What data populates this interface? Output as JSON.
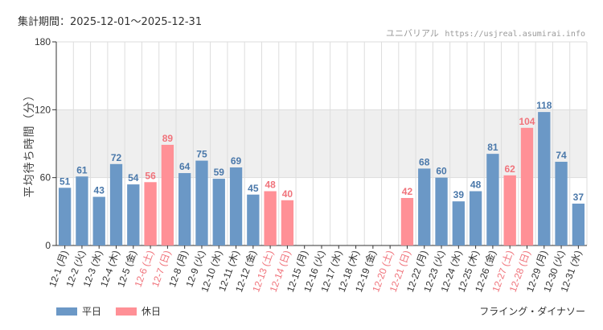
{
  "header": {
    "period_label": "集計期間：2025-12-01〜2025-12-31",
    "site_name": "ユニバリアル",
    "site_url": "https://usjreal.asumirai.info"
  },
  "footer": {
    "attraction": "フライング・ダイナソー"
  },
  "colors": {
    "weekday": "#6b98c6",
    "holiday": "#ff9096",
    "weekday_label": "#4a78aa",
    "holiday_label": "#f0737b",
    "band": "#efefef",
    "grid": "#dddddd",
    "axis": "#333333"
  },
  "chart_data": {
    "type": "bar",
    "title": "",
    "xlabel": "",
    "ylabel": "平均待ち時間（分）",
    "ylim": [
      0,
      180
    ],
    "yticks": [
      0,
      60,
      120,
      180
    ],
    "shaded_band": [
      60,
      120
    ],
    "grid": true,
    "legend": {
      "position": "bottom-left",
      "entries": [
        {
          "name": "平日",
          "key": "weekday"
        },
        {
          "name": "休日",
          "key": "holiday"
        }
      ]
    },
    "categories": [
      "12-1 (月)",
      "12-2 (火)",
      "12-3 (水)",
      "12-4 (木)",
      "12-5 (金)",
      "12-6 (土)",
      "12-7 (日)",
      "12-8 (月)",
      "12-9 (火)",
      "12-10 (水)",
      "12-11 (木)",
      "12-12 (金)",
      "12-13 (土)",
      "12-14 (日)",
      "12-15 (月)",
      "12-16 (火)",
      "12-17 (水)",
      "12-18 (木)",
      "12-19 (金)",
      "12-20 (土)",
      "12-21 (日)",
      "12-22 (月)",
      "12-23 (火)",
      "12-24 (水)",
      "12-25 (木)",
      "12-26 (金)",
      "12-27 (土)",
      "12-28 (日)",
      "12-29 (月)",
      "12-30 (火)",
      "12-31 (水)"
    ],
    "day_type": [
      "weekday",
      "weekday",
      "weekday",
      "weekday",
      "weekday",
      "holiday",
      "holiday",
      "weekday",
      "weekday",
      "weekday",
      "weekday",
      "weekday",
      "holiday",
      "holiday",
      "weekday",
      "weekday",
      "weekday",
      "weekday",
      "weekday",
      "holiday",
      "holiday",
      "weekday",
      "weekday",
      "weekday",
      "weekday",
      "weekday",
      "holiday",
      "holiday",
      "weekday",
      "weekday",
      "weekday"
    ],
    "values": [
      51,
      61,
      43,
      72,
      54,
      56,
      89,
      64,
      75,
      59,
      69,
      45,
      48,
      40,
      null,
      null,
      null,
      null,
      null,
      null,
      42,
      68,
      60,
      39,
      48,
      81,
      62,
      104,
      118,
      74,
      37
    ]
  }
}
